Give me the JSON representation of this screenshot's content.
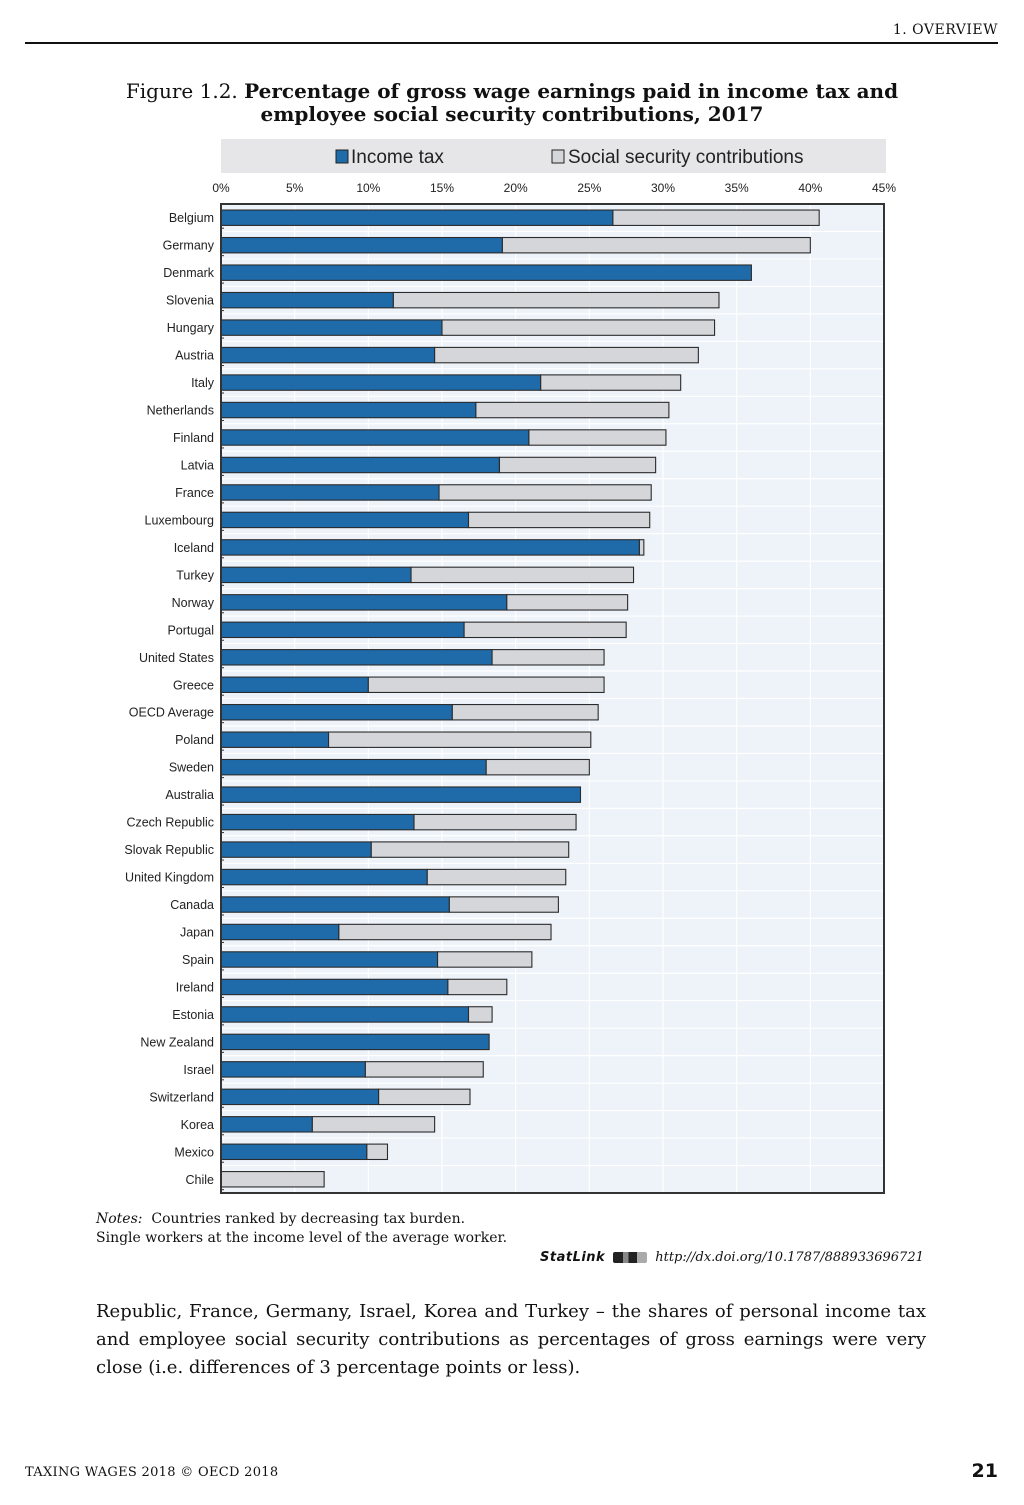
{
  "running_head": "1.  OVERVIEW",
  "figure": {
    "label": "Figure 1.2.",
    "title": "Percentage of gross wage earnings paid in income tax and employee social security contributions, 2017"
  },
  "notes": {
    "label": "Notes:",
    "line1": "Countries ranked by decreasing tax burden.",
    "line2": "Single workers at the income level of the average worker."
  },
  "statlink": {
    "brand": "StatLink",
    "url": "http://dx.doi.org/10.1787/888933696721"
  },
  "body_text": "Republic, France, Germany, Israel, Korea and Turkey – the shares of personal income tax and employee social security contributions as percentages of gross earnings were very close (i.e. differences of 3 percentage points or less).",
  "footer": {
    "left": "TAXING WAGES 2018 © OECD 2018",
    "page": "21"
  },
  "colors": {
    "income_tax": "#1f6aa8",
    "social_security": "#d4d6da",
    "plot_bg": "#eef3f9",
    "legend_bg": "#e6e6e8"
  },
  "chart_data": {
    "type": "bar",
    "orientation": "horizontal",
    "stacked": true,
    "xlim": [
      0,
      45
    ],
    "xticks": [
      "0%",
      "5%",
      "10%",
      "15%",
      "20%",
      "25%",
      "30%",
      "35%",
      "40%",
      "45%"
    ],
    "legend_position": "top",
    "grid": true,
    "categories": [
      "Belgium",
      "Germany",
      "Denmark",
      "Slovenia",
      "Hungary",
      "Austria",
      "Italy",
      "Netherlands",
      "Finland",
      "Latvia",
      "France",
      "Luxembourg",
      "Iceland",
      "Turkey",
      "Norway",
      "Portugal",
      "United States",
      "Greece",
      "OECD Average",
      "Poland",
      "Sweden",
      "Australia",
      "Czech Republic",
      "Slovak Republic",
      "United Kingdom",
      "Canada",
      "Japan",
      "Spain",
      "Ireland",
      "Estonia",
      "New Zealand",
      "Israel",
      "Switzerland",
      "Korea",
      "Mexico",
      "Chile"
    ],
    "series": [
      {
        "name": "Income tax",
        "values": [
          26.6,
          19.1,
          36.0,
          11.7,
          15.0,
          14.5,
          21.7,
          17.3,
          20.9,
          18.9,
          14.8,
          16.8,
          28.4,
          12.9,
          19.4,
          16.5,
          18.4,
          10.0,
          15.7,
          7.3,
          18.0,
          24.4,
          13.1,
          10.2,
          14.0,
          15.5,
          8.0,
          14.7,
          15.4,
          16.8,
          18.2,
          9.8,
          10.7,
          6.2,
          9.9,
          0.0
        ]
      },
      {
        "name": "Social security contributions",
        "values": [
          14.0,
          20.9,
          0.0,
          22.1,
          18.5,
          17.9,
          9.5,
          13.1,
          9.3,
          10.6,
          14.4,
          12.3,
          0.3,
          15.1,
          8.2,
          11.0,
          7.6,
          16.0,
          9.9,
          17.8,
          7.0,
          0.0,
          11.0,
          13.4,
          9.4,
          7.4,
          14.4,
          6.4,
          4.0,
          1.6,
          0.0,
          8.0,
          6.2,
          8.3,
          1.4,
          7.0
        ]
      }
    ]
  }
}
